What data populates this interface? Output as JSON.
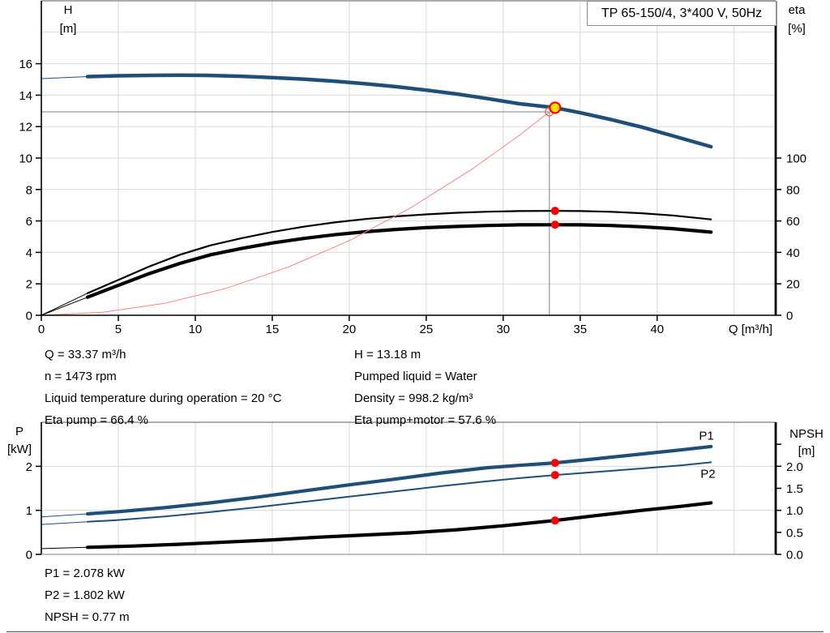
{
  "title_box": {
    "label": "TP 65-150/4, 3*400 V, 50Hz",
    "border_color": "#8c8c8c"
  },
  "operating_point": {
    "left": [
      "Q = 33.37 m³/h",
      "n = 1473 rpm",
      "Liquid temperature during operation = 20 °C",
      "Eta pump = 66.4 %"
    ],
    "right": [
      "H = 13.18 m",
      "Pumped liquid = Water",
      "Density = 998.2 kg/m³",
      "Eta pump+motor = 57.6 %"
    ]
  },
  "results": [
    "P1 = 2.078 kW",
    "P2 = 1.802 kW",
    "NPSH = 0.77 m"
  ],
  "page": {
    "bottom_border_color": "#4d4d4d"
  },
  "chart_data": [
    {
      "id": "top",
      "type": "line",
      "title": "TP 65-150/4, 3*400 V, 50Hz",
      "grid_color": "#d9d9d9",
      "x_axis": {
        "label": "Q [m³/h]",
        "range": [
          0,
          47.7
        ],
        "ticks": [
          {
            "v": 0,
            "t": "0"
          },
          {
            "v": 5,
            "t": "5"
          },
          {
            "v": 10,
            "t": "10"
          },
          {
            "v": 15,
            "t": "15"
          },
          {
            "v": 20,
            "t": "20"
          },
          {
            "v": 25,
            "t": "25"
          },
          {
            "v": 30,
            "t": "30"
          },
          {
            "v": 35,
            "t": "35"
          },
          {
            "v": 40,
            "t": "40"
          }
        ],
        "grid": [
          5,
          10,
          15,
          20,
          25,
          30,
          35,
          40,
          45
        ]
      },
      "y_left": {
        "label_lines": [
          "H",
          "[m]"
        ],
        "range": [
          0,
          20
        ],
        "ticks": [
          {
            "v": 0,
            "t": "0"
          },
          {
            "v": 2,
            "t": "2"
          },
          {
            "v": 4,
            "t": "4"
          },
          {
            "v": 6,
            "t": "6"
          },
          {
            "v": 8,
            "t": "8"
          },
          {
            "v": 10,
            "t": "10"
          },
          {
            "v": 12,
            "t": "12"
          },
          {
            "v": 14,
            "t": "14"
          },
          {
            "v": 16,
            "t": "16"
          }
        ],
        "grid": [
          2,
          4,
          6,
          8,
          10,
          12,
          14,
          16,
          18
        ]
      },
      "y_right": {
        "label_lines": [
          "eta",
          "[%]"
        ],
        "range": [
          0,
          200
        ],
        "ticks": [
          {
            "v": 0,
            "t": "0"
          },
          {
            "v": 20,
            "t": "20"
          },
          {
            "v": 40,
            "t": "40"
          },
          {
            "v": 60,
            "t": "60"
          },
          {
            "v": 80,
            "t": "80"
          },
          {
            "v": 100,
            "t": "100"
          }
        ],
        "grid": []
      },
      "series": [
        {
          "name": "qh-curve",
          "axis": "left",
          "color": "#1f4e79",
          "width": 4.5,
          "thin_until": 3,
          "points": [
            [
              0,
              15.05
            ],
            [
              1.5,
              15.12
            ],
            [
              3,
              15.18
            ],
            [
              5,
              15.23
            ],
            [
              7,
              15.26
            ],
            [
              9,
              15.27
            ],
            [
              11,
              15.25
            ],
            [
              13,
              15.2
            ],
            [
              15,
              15.12
            ],
            [
              17,
              15.02
            ],
            [
              19,
              14.89
            ],
            [
              21,
              14.73
            ],
            [
              23,
              14.54
            ],
            [
              25,
              14.32
            ],
            [
              27,
              14.07
            ],
            [
              29,
              13.78
            ],
            [
              31,
              13.46
            ],
            [
              33.37,
              13.2
            ],
            [
              35,
              12.88
            ],
            [
              37,
              12.45
            ],
            [
              39,
              11.97
            ],
            [
              41,
              11.42
            ],
            [
              43.5,
              10.72
            ]
          ]
        },
        {
          "name": "eta-pump-curve",
          "axis": "right",
          "color": "#000000",
          "width": 2.2,
          "thin_until": 3,
          "points": [
            [
              0,
              0
            ],
            [
              3,
              14
            ],
            [
              5,
              22.5
            ],
            [
              7,
              31
            ],
            [
              9,
              38.5
            ],
            [
              11,
              44.5
            ],
            [
              13,
              49
            ],
            [
              15,
              53
            ],
            [
              17,
              56.3
            ],
            [
              19,
              59
            ],
            [
              21,
              61.2
            ],
            [
              23,
              62.9
            ],
            [
              25,
              64.2
            ],
            [
              27,
              65.2
            ],
            [
              29,
              65.9
            ],
            [
              31,
              66.3
            ],
            [
              33.37,
              66.4
            ],
            [
              35,
              66.3
            ],
            [
              37,
              65.8
            ],
            [
              39,
              64.9
            ],
            [
              41,
              63.5
            ],
            [
              43.5,
              61
            ]
          ]
        },
        {
          "name": "eta-pump-motor-curve",
          "axis": "right",
          "color": "#000000",
          "width": 4.2,
          "thin_until": 3,
          "points": [
            [
              0,
              0
            ],
            [
              3,
              11.5
            ],
            [
              5,
              19
            ],
            [
              7,
              26.5
            ],
            [
              9,
              33
            ],
            [
              11,
              38.5
            ],
            [
              13,
              42.5
            ],
            [
              15,
              46
            ],
            [
              17,
              48.8
            ],
            [
              19,
              51.2
            ],
            [
              21,
              53.1
            ],
            [
              23,
              54.6
            ],
            [
              25,
              55.7
            ],
            [
              27,
              56.5
            ],
            [
              29,
              57.1
            ],
            [
              31,
              57.5
            ],
            [
              33.37,
              57.6
            ],
            [
              35,
              57.5
            ],
            [
              37,
              57.1
            ],
            [
              39,
              56.3
            ],
            [
              41,
              55.1
            ],
            [
              43.5,
              52.9
            ]
          ]
        },
        {
          "name": "system-curve",
          "axis": "left",
          "color": "#ff8080",
          "width": 1,
          "points": [
            [
              0,
              0
            ],
            [
              4,
              0.19
            ],
            [
              8,
              0.76
            ],
            [
              12,
              1.71
            ],
            [
              16,
              3.05
            ],
            [
              20,
              4.75
            ],
            [
              24,
              6.84
            ],
            [
              28,
              9.31
            ],
            [
              31,
              11.41
            ],
            [
              33,
              12.94
            ],
            [
              33.6,
              13.3
            ]
          ]
        }
      ],
      "crosshair": {
        "q": 33.0,
        "v": 12.94,
        "color": "#808080"
      },
      "markers": [
        {
          "name": "requested-duty-point",
          "q": 33.0,
          "v": 12.94,
          "axis": "left",
          "style": "open",
          "r": 5,
          "color": "#ff6666"
        },
        {
          "name": "eta-pump-duty-point",
          "q": 33.37,
          "v": 66.4,
          "axis": "right",
          "style": "dot",
          "r": 5,
          "fill": "#fe0000"
        },
        {
          "name": "eta-pump-motor-duty-point",
          "q": 33.37,
          "v": 57.6,
          "axis": "right",
          "style": "dot",
          "r": 5,
          "fill": "#fe0000"
        },
        {
          "name": "duty-point",
          "q": 33.37,
          "v": 13.2,
          "axis": "left",
          "style": "duty",
          "r": 6.5,
          "fill": "#ffe100",
          "color": "#fb0000"
        }
      ]
    },
    {
      "id": "bottom",
      "type": "line",
      "title": "",
      "grid_color": "#d9d9d9",
      "x_axis": {
        "label": "",
        "range": [
          0,
          47.7
        ],
        "ticks": [],
        "grid": [
          5,
          10,
          15,
          20,
          25,
          30,
          35,
          40,
          45
        ]
      },
      "y_left": {
        "label_lines": [
          "P",
          "[kW]"
        ],
        "range": [
          0,
          3
        ],
        "ticks": [
          {
            "v": 0,
            "t": "0"
          },
          {
            "v": 1,
            "t": "1"
          },
          {
            "v": 2,
            "t": "2"
          }
        ],
        "grid": [
          1,
          2
        ]
      },
      "y_right": {
        "label_lines": [
          "NPSH",
          "[m]"
        ],
        "range": [
          0,
          3
        ],
        "ticks": [
          {
            "v": 0,
            "t": "0.0"
          },
          {
            "v": 0.5,
            "t": "0.5"
          },
          {
            "v": 1,
            "t": "1.0"
          },
          {
            "v": 1.5,
            "t": "1.5"
          },
          {
            "v": 2,
            "t": "2.0"
          },
          {
            "v": 2.5,
            "t": ""
          }
        ],
        "grid": []
      },
      "series": [
        {
          "name": "p1-curve",
          "axis": "left",
          "color": "#1f4e79",
          "width": 4.2,
          "thin_until": 3,
          "label": {
            "text": "P1",
            "q": 43.2,
            "v": 2.6,
            "color": "#2e6399"
          },
          "points": [
            [
              0,
              0.85
            ],
            [
              3,
              0.92
            ],
            [
              5,
              0.97
            ],
            [
              8,
              1.06
            ],
            [
              11,
              1.17
            ],
            [
              14,
              1.3
            ],
            [
              17,
              1.44
            ],
            [
              20,
              1.58
            ],
            [
              23,
              1.71
            ],
            [
              26,
              1.85
            ],
            [
              29,
              1.97
            ],
            [
              31,
              2.02
            ],
            [
              33.37,
              2.078
            ],
            [
              36,
              2.17
            ],
            [
              39,
              2.28
            ],
            [
              41.5,
              2.37
            ],
            [
              43.5,
              2.45
            ]
          ]
        },
        {
          "name": "p2-curve",
          "axis": "left",
          "color": "#1f4e79",
          "width": 2,
          "thin_until": 3,
          "label": {
            "text": "P2",
            "q": 43.3,
            "v": 1.74,
            "color": "#2e6399"
          },
          "points": [
            [
              0,
              0.68
            ],
            [
              3,
              0.74
            ],
            [
              5,
              0.78
            ],
            [
              8,
              0.86
            ],
            [
              11,
              0.96
            ],
            [
              14,
              1.07
            ],
            [
              17,
              1.19
            ],
            [
              20,
              1.31
            ],
            [
              23,
              1.43
            ],
            [
              26,
              1.55
            ],
            [
              29,
              1.66
            ],
            [
              31,
              1.73
            ],
            [
              33.37,
              1.802
            ],
            [
              36,
              1.87
            ],
            [
              39,
              1.95
            ],
            [
              41.5,
              2.02
            ],
            [
              43.5,
              2.09
            ]
          ]
        },
        {
          "name": "npsh-curve",
          "axis": "right",
          "color": "#000000",
          "width": 4.2,
          "thin_until": 3,
          "points": [
            [
              0,
              0.13
            ],
            [
              3,
              0.16
            ],
            [
              6,
              0.19
            ],
            [
              9,
              0.23
            ],
            [
              12,
              0.28
            ],
            [
              15,
              0.33
            ],
            [
              18,
              0.39
            ],
            [
              21,
              0.44
            ],
            [
              24,
              0.49
            ],
            [
              27,
              0.56
            ],
            [
              30,
              0.65
            ],
            [
              33.37,
              0.77
            ],
            [
              36,
              0.88
            ],
            [
              39,
              1.0
            ],
            [
              41.5,
              1.09
            ],
            [
              43.5,
              1.17
            ]
          ]
        }
      ],
      "markers": [
        {
          "name": "p1-duty-point",
          "q": 33.37,
          "v": 2.078,
          "axis": "left",
          "style": "dot",
          "r": 5,
          "fill": "#fe0000"
        },
        {
          "name": "p2-duty-point",
          "q": 33.37,
          "v": 1.802,
          "axis": "left",
          "style": "dot",
          "r": 5,
          "fill": "#fe0000"
        },
        {
          "name": "npsh-duty-point",
          "q": 33.37,
          "v": 0.77,
          "axis": "right",
          "style": "dot",
          "r": 5,
          "fill": "#fe0000"
        }
      ]
    }
  ]
}
